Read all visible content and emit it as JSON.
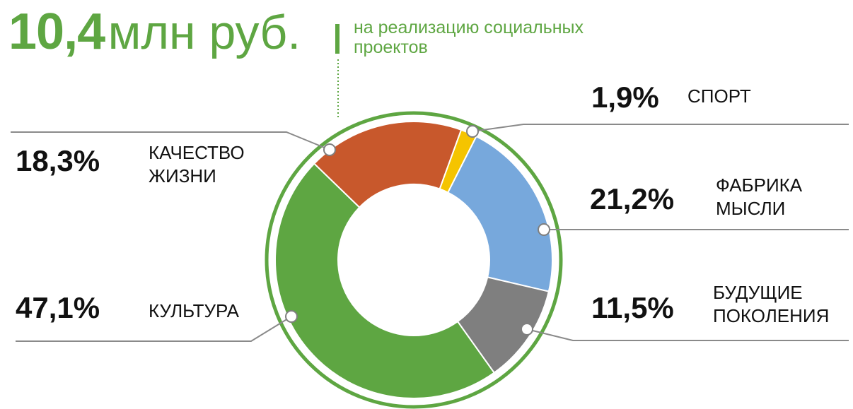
{
  "chart_data": {
    "type": "pie",
    "title_value": "10,4",
    "title_unit": "млн руб.",
    "subtitle": "на реализацию социальных проектов",
    "categories": [
      "СПОРТ",
      "ФАБРИКА МЫСЛИ",
      "БУДУЩИЕ ПОКОЛЕНИЯ",
      "КУЛЬТУРА",
      "КАЧЕСТВО ЖИЗНИ"
    ],
    "values": [
      1.9,
      21.2,
      11.5,
      47.1,
      18.3
    ],
    "value_labels": [
      "1,9%",
      "21,2%",
      "11,5%",
      "47,1%",
      "18,3%"
    ],
    "colors": [
      "#f5c400",
      "#77a8dc",
      "#7f7f7f",
      "#5ea642",
      "#c8582c"
    ],
    "hole": true
  }
}
